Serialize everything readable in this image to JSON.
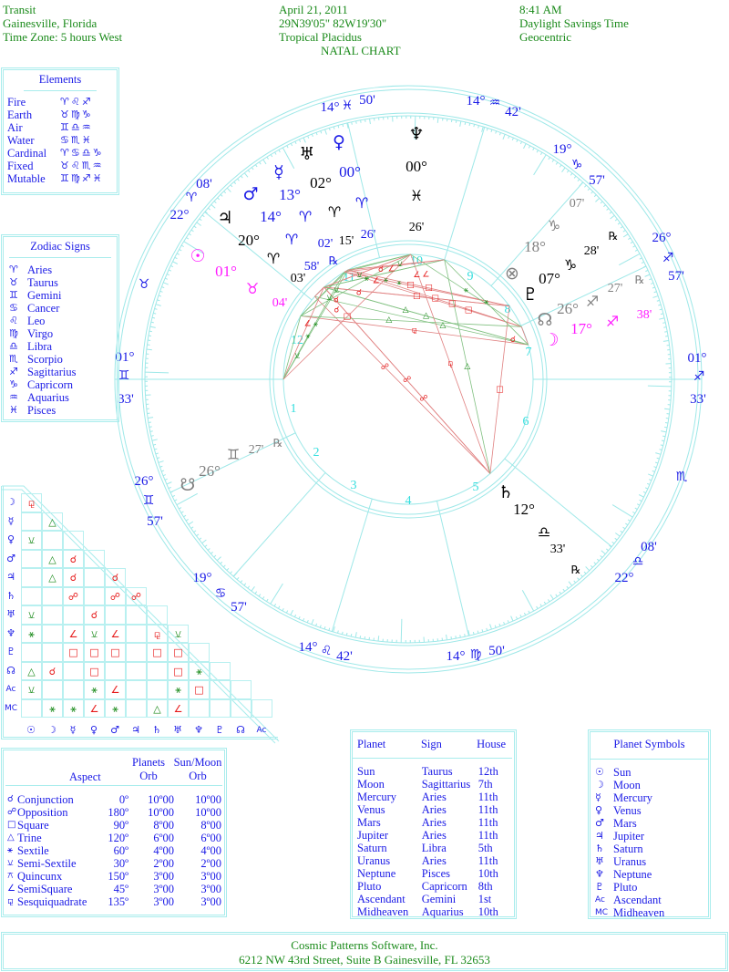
{
  "header": {
    "col1": [
      "Transit",
      "Gainesville, Florida",
      "Time Zone: 5 hours West"
    ],
    "col2": [
      "April 21, 2011",
      "29N39'05\"  82W19'30\"",
      "Tropical Placidus"
    ],
    "col3": [
      "8:41 AM",
      "Daylight Savings Time",
      "Geocentric"
    ],
    "chart_title": "NATAL CHART"
  },
  "colors": {
    "blue": "#1a1ae6",
    "green": "#1a8a1a",
    "red": "#e61a1a",
    "cyan": "#9ee8e8",
    "magenta": "#ff1aff",
    "gray": "#808080",
    "black": "#000000",
    "house_number": "#33dede"
  },
  "elements": {
    "title": "Elements",
    "rows": [
      {
        "label": "Fire",
        "signs": "♈♌♐"
      },
      {
        "label": "Earth",
        "signs": "♉♍♑"
      },
      {
        "label": "Air",
        "signs": "♊♎♒"
      },
      {
        "label": "Water",
        "signs": "♋♏♓"
      },
      {
        "label": "Cardinal",
        "signs": "♈♋♎♑"
      },
      {
        "label": "Fixed",
        "signs": "♉♌♏♒"
      },
      {
        "label": "Mutable",
        "signs": "♊♍♐♓"
      }
    ]
  },
  "zodiac_signs": {
    "title": "Zodiac Signs",
    "rows": [
      {
        "glyph": "♈",
        "label": "Aries"
      },
      {
        "glyph": "♉",
        "label": "Taurus"
      },
      {
        "glyph": "♊",
        "label": "Gemini"
      },
      {
        "glyph": "♋",
        "label": "Cancer"
      },
      {
        "glyph": "♌",
        "label": "Leo"
      },
      {
        "glyph": "♍",
        "label": "Virgo"
      },
      {
        "glyph": "♎",
        "label": "Libra"
      },
      {
        "glyph": "♏",
        "label": "Scorpio"
      },
      {
        "glyph": "♐",
        "label": "Sagittarius"
      },
      {
        "glyph": "♑",
        "label": "Capricorn"
      },
      {
        "glyph": "♒",
        "label": "Aquarius"
      },
      {
        "glyph": "♓",
        "label": "Pisces"
      }
    ]
  },
  "house_cusps": [
    {
      "house": 1,
      "deg": "01°",
      "sign": "♊",
      "min": "33'"
    },
    {
      "house": 2,
      "deg": "26°",
      "sign": "♊",
      "min": "57'"
    },
    {
      "house": 3,
      "deg": "19°",
      "sign": "♋",
      "min": "57'"
    },
    {
      "house": 4,
      "deg": "14°",
      "sign": "♌",
      "min": "42'"
    },
    {
      "house": 5,
      "deg": "14°",
      "sign": "♍",
      "min": "50'"
    },
    {
      "house": 6,
      "deg": "22°",
      "sign": "♎",
      "min": "08'"
    },
    {
      "house": 7,
      "deg": "01°",
      "sign": "♐",
      "min": "33'"
    },
    {
      "house": 8,
      "deg": "26°",
      "sign": "♐",
      "min": "57'"
    },
    {
      "house": 9,
      "deg": "19°",
      "sign": "♑",
      "min": "57'"
    },
    {
      "house": 10,
      "deg": "14°",
      "sign": "♒",
      "min": "42'"
    },
    {
      "house": 11,
      "deg": "14°",
      "sign": "♓",
      "min": "50'"
    },
    {
      "house": 12,
      "deg": "22°",
      "sign": "♈",
      "min": "08'"
    }
  ],
  "intercepted_signs": [
    "♉",
    "♏"
  ],
  "wheel_planets": [
    {
      "name": "neptune",
      "glyph": "♆",
      "deg": "00°",
      "sign": "♓",
      "min": "26'",
      "rx": "",
      "color": "#000000"
    },
    {
      "name": "venus",
      "glyph": "♀",
      "deg": "00°",
      "sign": "♈",
      "min": "26'",
      "rx": "",
      "color": "#1a1ae6"
    },
    {
      "name": "uranus",
      "glyph": "♅",
      "deg": "02°",
      "sign": "♈",
      "min": "15'",
      "rx": "",
      "color": "#000000"
    },
    {
      "name": "mercury",
      "glyph": "☿",
      "deg": "13°",
      "sign": "♈",
      "min": "58'",
      "rx": "℞",
      "color": "#1a1ae6"
    },
    {
      "name": "mars",
      "glyph": "♂",
      "deg": "14°",
      "sign": "♈",
      "min": "02'",
      "rx": "",
      "color": "#1a1ae6"
    },
    {
      "name": "jupiter",
      "glyph": "♃",
      "deg": "20°",
      "sign": "♈",
      "min": "03'",
      "rx": "",
      "color": "#000000"
    },
    {
      "name": "sun",
      "glyph": "☉",
      "deg": "01°",
      "sign": "♉",
      "min": "04'",
      "rx": "",
      "color": "#ff1aff"
    },
    {
      "name": "fortune",
      "glyph": "⊗",
      "deg": "18°",
      "sign": "♑",
      "min": "07'",
      "rx": "",
      "color": "#808080"
    },
    {
      "name": "pluto",
      "glyph": "♇",
      "deg": "07°",
      "sign": "♑",
      "min": "28'",
      "rx": "℞",
      "color": "#000000"
    },
    {
      "name": "node",
      "glyph": "☊",
      "deg": "26°",
      "sign": "♐",
      "min": "27'",
      "rx": "℞",
      "color": "#808080"
    },
    {
      "name": "moon",
      "glyph": "☽",
      "deg": "17°",
      "sign": "♐",
      "min": "38'",
      "rx": "",
      "color": "#ff1aff"
    },
    {
      "name": "south-node",
      "glyph": "☋",
      "deg": "26°",
      "sign": "♊",
      "min": "27'",
      "rx": "℞",
      "color": "#808080"
    },
    {
      "name": "saturn",
      "glyph": "♄",
      "deg": "12°",
      "sign": "♎",
      "min": "33'",
      "rx": "℞",
      "color": "#000000"
    }
  ],
  "aspect_grid": {
    "row_labels": [
      "☽",
      "☿",
      "♀",
      "♂",
      "♃",
      "♄",
      "♅",
      "♆",
      "♇",
      "☊",
      "Ac",
      "MC"
    ],
    "col_labels": [
      "☉",
      "☽",
      "☿",
      "♀",
      "♂",
      "♃",
      "♄",
      "♅",
      "♆",
      "♇",
      "☊",
      "Ac"
    ],
    "rows": [
      [
        "sesquiquadrate"
      ],
      [
        "",
        "trine"
      ],
      [
        "semi-sextile",
        "",
        ""
      ],
      [
        "",
        "trine",
        "conjunction",
        ""
      ],
      [
        "",
        "trine",
        "conjunction",
        "",
        "conjunction"
      ],
      [
        "",
        "",
        "opposition",
        "",
        "opposition",
        "opposition"
      ],
      [
        "semi-sextile",
        "",
        "",
        "conjunction",
        "",
        "",
        ""
      ],
      [
        "sextile",
        "",
        "semisquare",
        "semi-sextile",
        "semisquare",
        "",
        "sesquiquadrate",
        "semi-sextile"
      ],
      [
        "",
        "",
        "square",
        "square",
        "square",
        "",
        "square",
        "square",
        ""
      ],
      [
        "trine",
        "conjunction",
        "",
        "square",
        "",
        "",
        "",
        "square",
        "sextile",
        ""
      ],
      [
        "semi-sextile",
        "",
        "",
        "sextile",
        "semisquare",
        "",
        "",
        "sextile",
        "square",
        "",
        ""
      ],
      [
        "",
        "sextile",
        "sextile",
        "semisquare",
        "sextile",
        "",
        "trine",
        "semisquare",
        "",
        "",
        "",
        ""
      ]
    ]
  },
  "aspects": {
    "header": {
      "aspect": "Aspect",
      "planets_orb": [
        "Planets",
        "Orb"
      ],
      "sunmoon_orb": [
        "Sun/Moon",
        "Orb"
      ]
    },
    "rows": [
      {
        "key": "conjunction",
        "glyph": "☌",
        "label": "Conjunction",
        "angle": "0º",
        "planets_orb": "10º00",
        "sunmoon_orb": "10º00",
        "hard": true
      },
      {
        "key": "opposition",
        "glyph": "☍",
        "label": "Opposition",
        "angle": "180º",
        "planets_orb": "10º00",
        "sunmoon_orb": "10º00",
        "hard": true
      },
      {
        "key": "square",
        "glyph": "□",
        "label": "Square",
        "angle": "90º",
        "planets_orb": "8º00",
        "sunmoon_orb": "8º00",
        "hard": true
      },
      {
        "key": "trine",
        "glyph": "△",
        "label": "Trine",
        "angle": "120º",
        "planets_orb": "6º00",
        "sunmoon_orb": "6º00",
        "hard": false
      },
      {
        "key": "sextile",
        "glyph": "⚹",
        "label": "Sextile",
        "angle": "60º",
        "planets_orb": "4º00",
        "sunmoon_orb": "4º00",
        "hard": false
      },
      {
        "key": "semi-sextile",
        "glyph": "⚺",
        "label": "Semi-Sextile",
        "angle": "30º",
        "planets_orb": "2º00",
        "sunmoon_orb": "2º00",
        "hard": false
      },
      {
        "key": "quincunx",
        "glyph": "⚻",
        "label": "Quincunx",
        "angle": "150º",
        "planets_orb": "3º00",
        "sunmoon_orb": "3º00",
        "hard": false
      },
      {
        "key": "semisquare",
        "glyph": "∠",
        "label": "SemiSquare",
        "angle": "45º",
        "planets_orb": "3º00",
        "sunmoon_orb": "3º00",
        "hard": true
      },
      {
        "key": "sesquiquadrate",
        "glyph": "⚼",
        "label": "Sesquiquadrate",
        "angle": "135º",
        "planets_orb": "3º00",
        "sunmoon_orb": "3º00",
        "hard": true
      }
    ]
  },
  "placements": {
    "headers": [
      "Planet",
      "Sign",
      "House"
    ],
    "rows": [
      [
        "Sun",
        "Taurus",
        "12th"
      ],
      [
        "Moon",
        "Sagittarius",
        "7th"
      ],
      [
        "Mercury",
        "Aries",
        "11th"
      ],
      [
        "Venus",
        "Aries",
        "11th"
      ],
      [
        "Mars",
        "Aries",
        "11th"
      ],
      [
        "Jupiter",
        "Aries",
        "11th"
      ],
      [
        "Saturn",
        "Libra",
        "5th"
      ],
      [
        "Uranus",
        "Aries",
        "11th"
      ],
      [
        "Neptune",
        "Pisces",
        "10th"
      ],
      [
        "Pluto",
        "Capricorn",
        "8th"
      ],
      [
        "Ascendant",
        "Gemini",
        "1st"
      ],
      [
        "Midheaven",
        "Aquarius",
        "10th"
      ]
    ]
  },
  "planet_symbols": {
    "title": "Planet Symbols",
    "rows": [
      {
        "glyph": "☉",
        "label": "Sun"
      },
      {
        "glyph": "☽",
        "label": "Moon"
      },
      {
        "glyph": "☿",
        "label": "Mercury"
      },
      {
        "glyph": "♀",
        "label": "Venus"
      },
      {
        "glyph": "♂",
        "label": "Mars"
      },
      {
        "glyph": "♃",
        "label": "Jupiter"
      },
      {
        "glyph": "♄",
        "label": "Saturn"
      },
      {
        "glyph": "♅",
        "label": "Uranus"
      },
      {
        "glyph": "♆",
        "label": "Neptune"
      },
      {
        "glyph": "♇",
        "label": "Pluto"
      },
      {
        "glyph": "Ac",
        "label": "Ascendant"
      },
      {
        "glyph": "MC",
        "label": "Midheaven"
      }
    ]
  },
  "footer": {
    "line1": "Cosmic Patterns Software, Inc.",
    "line2": "6212 NW 43rd Street, Suite B   Gainesville, FL 32653"
  }
}
